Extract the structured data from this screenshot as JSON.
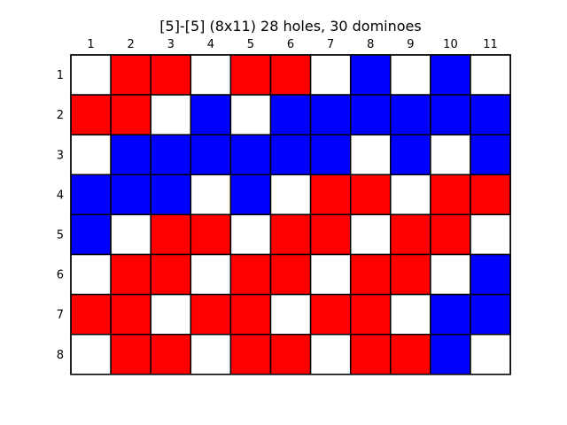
{
  "title": "[5]-[5]  (8x11) 28 holes, 30 dominoes",
  "grid": {
    "rows": 8,
    "cols": 11,
    "col_labels": [
      "1",
      "2",
      "3",
      "4",
      "5",
      "6",
      "7",
      "8",
      "9",
      "10",
      "11"
    ],
    "row_labels": [
      "1",
      "2",
      "3",
      "4",
      "5",
      "6",
      "7",
      "8"
    ],
    "cells": [
      [
        "W",
        "R",
        "R",
        "W",
        "R",
        "R",
        "W",
        "B",
        "W",
        "B",
        "W"
      ],
      [
        "R",
        "R",
        "W",
        "B",
        "W",
        "B",
        "B",
        "B",
        "B",
        "B",
        "B"
      ],
      [
        "W",
        "B",
        "B",
        "B",
        "B",
        "B",
        "B",
        "W",
        "B",
        "W",
        "B"
      ],
      [
        "B",
        "B",
        "B",
        "W",
        "B",
        "W",
        "R",
        "R",
        "W",
        "R",
        "R"
      ],
      [
        "B",
        "W",
        "R",
        "R",
        "W",
        "R",
        "R",
        "W",
        "R",
        "R",
        "W"
      ],
      [
        "W",
        "R",
        "R",
        "W",
        "R",
        "R",
        "W",
        "R",
        "R",
        "W",
        "B"
      ],
      [
        "R",
        "R",
        "W",
        "R",
        "R",
        "W",
        "R",
        "R",
        "W",
        "B",
        "B"
      ],
      [
        "W",
        "R",
        "R",
        "W",
        "R",
        "R",
        "W",
        "R",
        "R",
        "B",
        "W"
      ]
    ]
  },
  "colors": {
    "R": "#ff0000",
    "B": "#0000ff",
    "W": "#ffffff",
    "border": "#000000"
  }
}
